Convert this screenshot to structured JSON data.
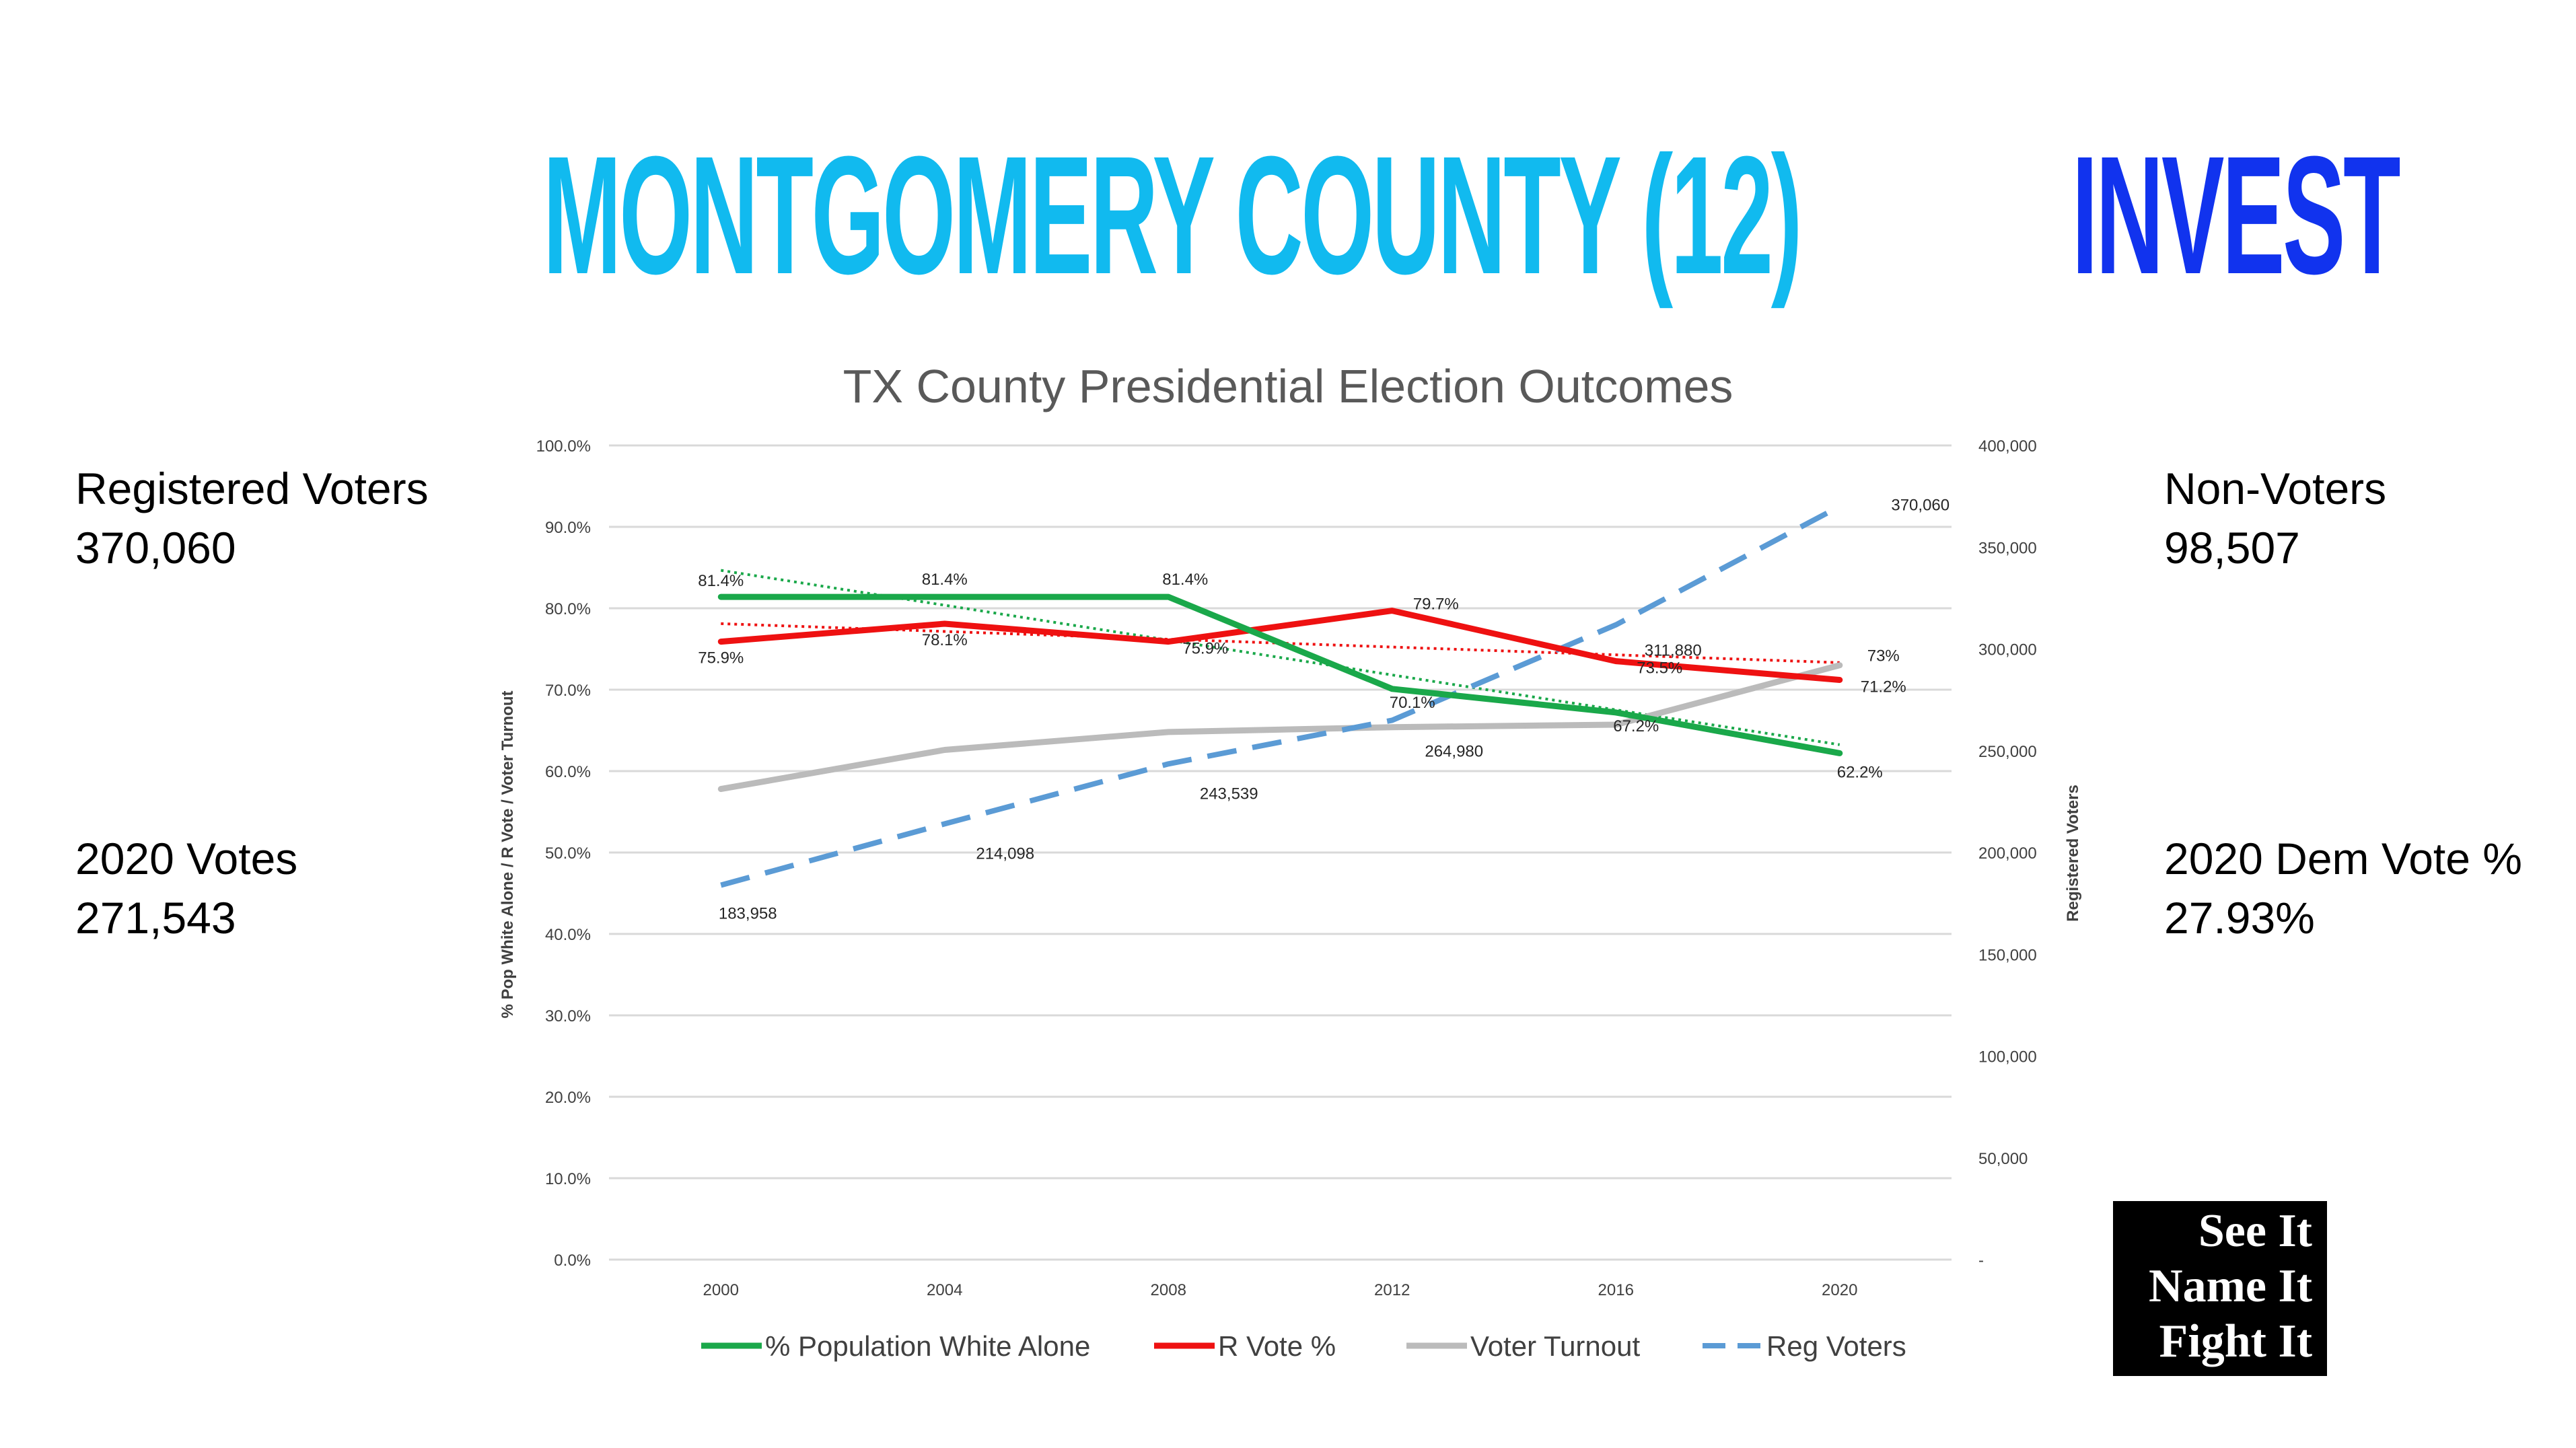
{
  "headline": {
    "county": "MONTGOMERY COUNTY (12)",
    "action": "INVEST"
  },
  "left_stats": [
    {
      "label": "Registered Voters",
      "value": "370,060"
    },
    {
      "label": "2020 Votes",
      "value": "271,543"
    }
  ],
  "right_stats": [
    {
      "label": "Non-Voters",
      "value": "98,507"
    },
    {
      "label": "2020 Dem Vote %",
      "value": "27.93%"
    }
  ],
  "logo": {
    "lines": [
      "See It",
      "Name It",
      "Fight It"
    ]
  },
  "colors": {
    "headline_county": "#11baef",
    "headline_action": "#1133ee",
    "white_alone": "#1aa84a",
    "r_vote": "#ee1111",
    "turnout": "#bbbbbb",
    "reg_voters": "#5b9bd5",
    "gridline": "#d9d9d9"
  },
  "chart_data": {
    "type": "line",
    "title": "TX County Presidential Election Outcomes",
    "ylabel": "% Pop White Alone / R Vote / Voter Turnout",
    "y2label": "Registered Voters",
    "x": [
      "2000",
      "2004",
      "2008",
      "2012",
      "2016",
      "2020"
    ],
    "ylim": [
      0,
      100
    ],
    "y_ticks": [
      "0.0%",
      "10.0%",
      "20.0%",
      "30.0%",
      "40.0%",
      "50.0%",
      "60.0%",
      "70.0%",
      "80.0%",
      "90.0%",
      "100.0%"
    ],
    "y2lim": [
      0,
      400000
    ],
    "y2_ticks": [
      "-",
      "50,000",
      "100,000",
      "150,000",
      "200,000",
      "250,000",
      "300,000",
      "350,000",
      "400,000"
    ],
    "grid": true,
    "legend_position": "bottom",
    "series": [
      {
        "name": "% Population White Alone",
        "axis": "left",
        "style": "solid",
        "color": "#1aa84a",
        "values": [
          81.4,
          81.4,
          81.4,
          70.1,
          67.2,
          62.2
        ],
        "labels": [
          "81.4%",
          "81.4%",
          "81.4%",
          "70.1%",
          "67.2%",
          "62.2%"
        ],
        "trendline": true
      },
      {
        "name": "R Vote %",
        "axis": "left",
        "style": "solid",
        "color": "#ee1111",
        "values": [
          75.9,
          78.1,
          75.9,
          79.7,
          73.5,
          71.2
        ],
        "labels": [
          "75.9%",
          "78.1%",
          "75.9%",
          "79.7%",
          "73.5%",
          "71.2%"
        ],
        "trendline": true
      },
      {
        "name": "Voter Turnout",
        "axis": "left",
        "style": "solid",
        "color": "#bbbbbb",
        "values": [
          57.8,
          62.6,
          64.8,
          65.4,
          65.7,
          73.0
        ],
        "labels": [
          "",
          "",
          "",
          "",
          "",
          "73%"
        ]
      },
      {
        "name": "Reg Voters",
        "axis": "right",
        "style": "dashed",
        "color": "#5b9bd5",
        "values": [
          183958,
          214098,
          243539,
          264980,
          311880,
          370060
        ],
        "labels": [
          "183,958",
          "214,098",
          "243,539",
          "264,980",
          "311,880",
          "370,060"
        ]
      }
    ]
  }
}
